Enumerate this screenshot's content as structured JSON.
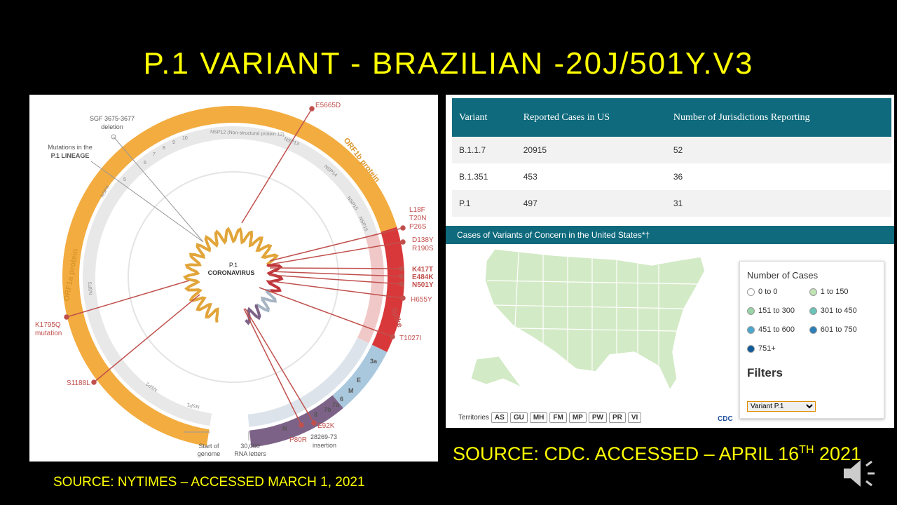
{
  "title": "P.1 VARIANT - BRAZILIAN -20J/501Y.V3",
  "genome": {
    "center": [
      "P.1",
      "CORONAVIRUS"
    ],
    "proteins": [
      "ORF1b protein",
      "ORF1a protein",
      "Spike"
    ],
    "nsp": [
      "NSP12 (Non-structural protein 12)",
      "NSP13",
      "NSP14",
      "NSP15",
      "NSP16",
      "NSP4",
      "NSP3",
      "NSP2",
      "NSP1",
      "5",
      "6",
      "7",
      "8",
      "9",
      "10"
    ],
    "genes": [
      "3a",
      "E",
      "M",
      "6",
      "7a",
      "7b",
      "8",
      "N"
    ],
    "annotations": [
      "SGF 3675-3677",
      "deletion",
      "Mutations in the",
      "P.1 LINEAGE",
      "Start of",
      "genome",
      "30,000",
      "RNA letters"
    ],
    "mutations": [
      "E5665D",
      "L18F",
      "T20N",
      "P26S",
      "D138Y",
      "R190S",
      "K417T",
      "E484K",
      "N501Y",
      "H655Y",
      "T1027I",
      "E92K",
      "P80R",
      "28269-73",
      "insertion",
      "K1795Q",
      "mutation",
      "S1188L"
    ]
  },
  "table": {
    "header": [
      "Variant",
      "Reported Cases in US",
      "Number of Jurisdictions Reporting"
    ],
    "rows": [
      [
        "B.1.1.7",
        "20915",
        "52"
      ],
      [
        "B.1.351",
        "453",
        "36"
      ],
      [
        "P.1",
        "497",
        "31"
      ]
    ]
  },
  "map": {
    "title": "Cases of Variants of Concern in the United States*†",
    "legend_title": "Number of Cases",
    "legend": [
      {
        "label": "0 to 0",
        "color": "#ffffff"
      },
      {
        "label": "1 to 150",
        "color": "#bfe3b4"
      },
      {
        "label": "151 to 300",
        "color": "#98d4a6"
      },
      {
        "label": "301 to 450",
        "color": "#6cc3b8"
      },
      {
        "label": "451 to 600",
        "color": "#4ba8cf"
      },
      {
        "label": "601 to 750",
        "color": "#2a7fb8"
      },
      {
        "label": "751+",
        "color": "#105a9c"
      }
    ],
    "filters": "Filters",
    "select": "Variant P.1",
    "territories_label": "Territories",
    "territories": [
      "AS",
      "GU",
      "MH",
      "FM",
      "MP",
      "PW",
      "PR",
      "VI"
    ],
    "logo": "CDC"
  },
  "sources": {
    "left": "SOURCE:  NYTIMES – ACCESSED  MARCH 1, 2021",
    "right": [
      "SOURCE: CDC. ACCESSED – APRIL 16",
      "TH",
      " 2021"
    ]
  }
}
